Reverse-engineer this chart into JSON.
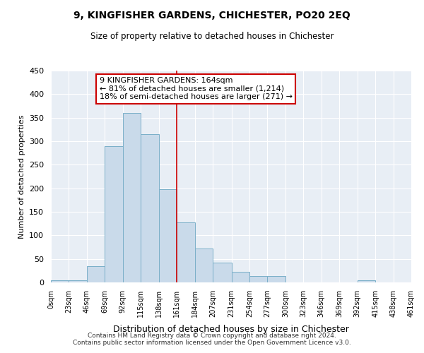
{
  "title": "9, KINGFISHER GARDENS, CHICHESTER, PO20 2EQ",
  "subtitle": "Size of property relative to detached houses in Chichester",
  "xlabel": "Distribution of detached houses by size in Chichester",
  "ylabel": "Number of detached properties",
  "bar_color": "#c9daea",
  "bar_edge_color": "#7aafc8",
  "background_color": "#ffffff",
  "axes_bg_color": "#e8eef5",
  "grid_color": "#ffffff",
  "property_line_x": 161,
  "property_line_color": "#cc0000",
  "annotation_box_color": "#cc0000",
  "bin_edges": [
    0,
    23,
    46,
    69,
    92,
    115,
    138,
    161,
    184,
    207,
    231,
    254,
    277,
    300,
    323,
    346,
    369,
    392,
    415,
    438,
    461
  ],
  "counts": [
    5,
    5,
    35,
    290,
    360,
    315,
    198,
    128,
    72,
    42,
    22,
    14,
    14,
    0,
    0,
    0,
    0,
    5,
    0,
    0
  ],
  "ylim": [
    0,
    450
  ],
  "yticks": [
    0,
    50,
    100,
    150,
    200,
    250,
    300,
    350,
    400,
    450
  ],
  "annotation_lines": [
    "9 KINGFISHER GARDENS: 164sqm",
    "← 81% of detached houses are smaller (1,214)",
    "18% of semi-detached houses are larger (271) →"
  ],
  "footer_lines": [
    "Contains HM Land Registry data © Crown copyright and database right 2024.",
    "Contains public sector information licensed under the Open Government Licence v3.0."
  ]
}
